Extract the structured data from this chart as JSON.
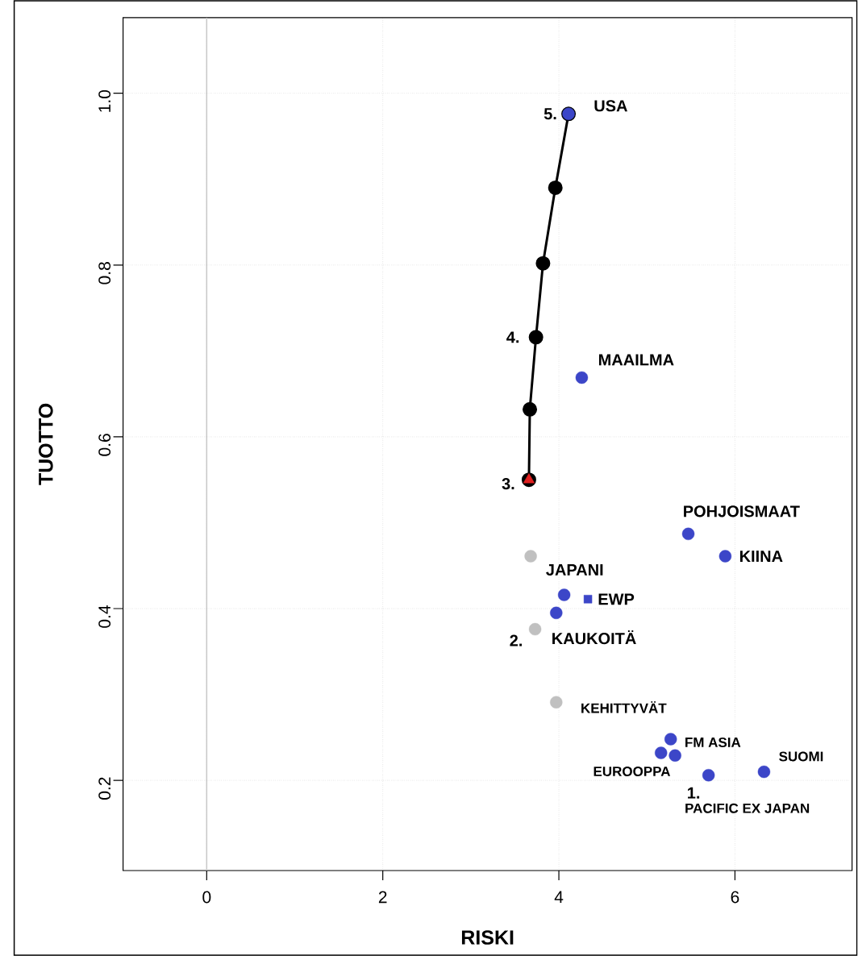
{
  "chart_data": {
    "type": "scatter",
    "xlabel": "RISKI",
    "ylabel": "TUOTTO",
    "xlim": [
      -0.95,
      7.33
    ],
    "ylim": [
      0.095,
      1.088
    ],
    "xticks": [
      0,
      2,
      4,
      6
    ],
    "yticks": [
      0.2,
      0.4,
      0.6,
      0.8,
      {
        "value": 1.0,
        "label": "1.0"
      }
    ],
    "grid": true,
    "ref_lines": [
      {
        "axis": "x",
        "value": 0,
        "color": "#c8c8c8",
        "line_style": "solid"
      }
    ],
    "series": [
      {
        "type": "line",
        "color": "#000000",
        "marker": "circle",
        "line_style": "solid",
        "x": [
          3.66,
          3.67,
          3.74,
          3.82,
          3.96,
          4.11
        ],
        "values": [
          0.55,
          0.632,
          0.716,
          0.802,
          0.89,
          0.976
        ]
      },
      {
        "type": "scatter",
        "color": "#c0c0c0",
        "marker": "circle",
        "x": [
          3.68,
          3.73,
          3.97
        ],
        "values": [
          0.461,
          0.376,
          0.291
        ]
      },
      {
        "type": "scatter",
        "color": "#3c46c8",
        "marker": "circle",
        "x": [
          4.11,
          4.26,
          5.47,
          5.89,
          4.06,
          3.97,
          5.27,
          5.16,
          5.32,
          5.7,
          6.33
        ],
        "values": [
          0.976,
          0.669,
          0.487,
          0.461,
          0.416,
          0.395,
          0.248,
          0.232,
          0.229,
          0.206,
          0.21
        ]
      },
      {
        "type": "scatter",
        "color": "#3c46c8",
        "marker": "square",
        "x": [
          4.33
        ],
        "values": [
          0.411
        ]
      },
      {
        "type": "scatter",
        "color": "#e02020",
        "marker": "triangle",
        "x": [
          3.66
        ],
        "values": [
          0.55
        ]
      }
    ],
    "annotations": [
      {
        "text": "5.",
        "x": 4.11,
        "y": 0.976
      },
      {
        "text": "USA",
        "x": 4.11,
        "y": 0.976
      },
      {
        "text": "4.",
        "x": 3.74,
        "y": 0.716
      },
      {
        "text": "MAAILMA",
        "x": 4.26,
        "y": 0.669
      },
      {
        "text": "3.",
        "x": 3.66,
        "y": 0.55
      },
      {
        "text": "POHJOISMAAT",
        "x": 5.47,
        "y": 0.487
      },
      {
        "text": "KIINA",
        "x": 5.89,
        "y": 0.461
      },
      {
        "text": "JAPANI",
        "x": 4.06,
        "y": 0.416
      },
      {
        "text": "EWP",
        "x": 4.33,
        "y": 0.411
      },
      {
        "text": "2.",
        "x": 3.73,
        "y": 0.376
      },
      {
        "text": "KAUKOITÄ",
        "x": 3.73,
        "y": 0.376
      },
      {
        "text": "KEHITTYVÄT",
        "x": 3.97,
        "y": 0.291
      },
      {
        "text": "FM ASIA",
        "x": 5.27,
        "y": 0.248
      },
      {
        "text": "EUROOPPA",
        "x": 5.16,
        "y": 0.232
      },
      {
        "text": "1.",
        "x": 5.7,
        "y": 0.206
      },
      {
        "text": "PACIFIC EX JAPAN",
        "x": 5.7,
        "y": 0.206
      },
      {
        "text": "SUOMI",
        "x": 6.33,
        "y": 0.21
      }
    ]
  }
}
